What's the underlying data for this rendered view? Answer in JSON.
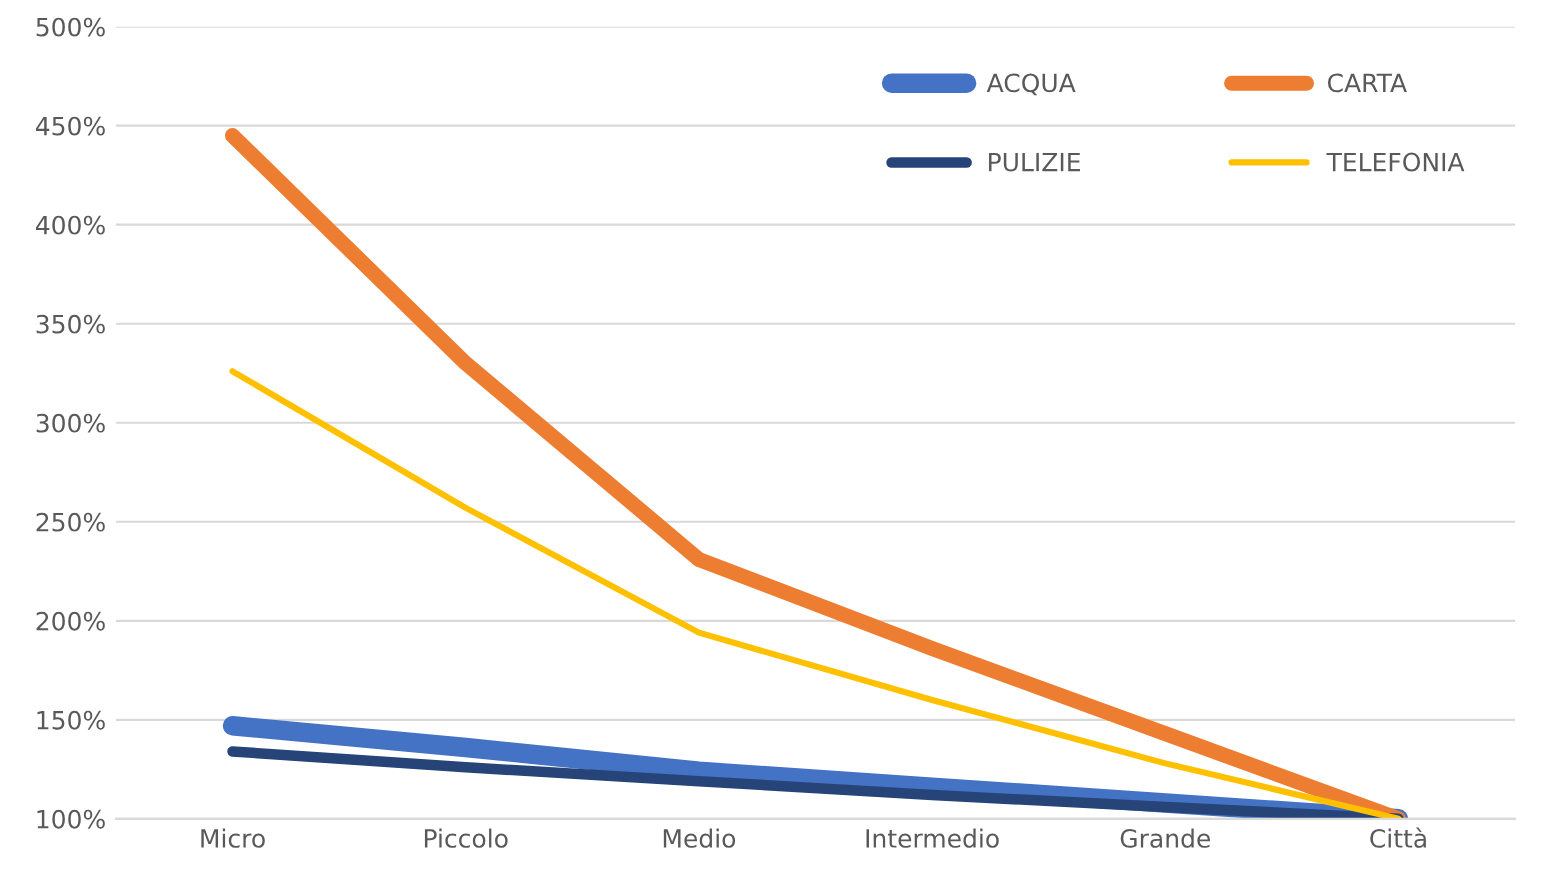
{
  "chart_data": {
    "type": "line",
    "categories": [
      "Micro",
      "Piccolo",
      "Medio",
      "Intermedio",
      "Grande",
      "Città"
    ],
    "series": [
      {
        "name": "ACQUA",
        "color": "#4472c4",
        "values": [
          147,
          136,
          124,
          116,
          108,
          100
        ]
      },
      {
        "name": "CARTA",
        "color": "#ed7d31",
        "values": [
          445,
          330,
          231,
          186,
          143,
          100
        ]
      },
      {
        "name": "PULIZIE",
        "color": "#264478",
        "values": [
          134,
          126,
          119,
          112,
          106,
          100
        ]
      },
      {
        "name": "TELEFONIA",
        "color": "#ffc000",
        "values": [
          326,
          257,
          194,
          160,
          128,
          100
        ]
      }
    ],
    "ylim": [
      100,
      500
    ],
    "yticks": [
      {
        "value": 100,
        "label": "100%"
      },
      {
        "value": 150,
        "label": "150%"
      },
      {
        "value": 200,
        "label": "200%"
      },
      {
        "value": 250,
        "label": "250%"
      },
      {
        "value": 300,
        "label": "300%"
      },
      {
        "value": 350,
        "label": "350%"
      },
      {
        "value": 400,
        "label": "400%"
      },
      {
        "value": 450,
        "label": "450%"
      },
      {
        "value": 500,
        "label": "500%"
      }
    ],
    "grid": "y",
    "legend": "top right",
    "marker": "none",
    "line_style": "solid"
  }
}
